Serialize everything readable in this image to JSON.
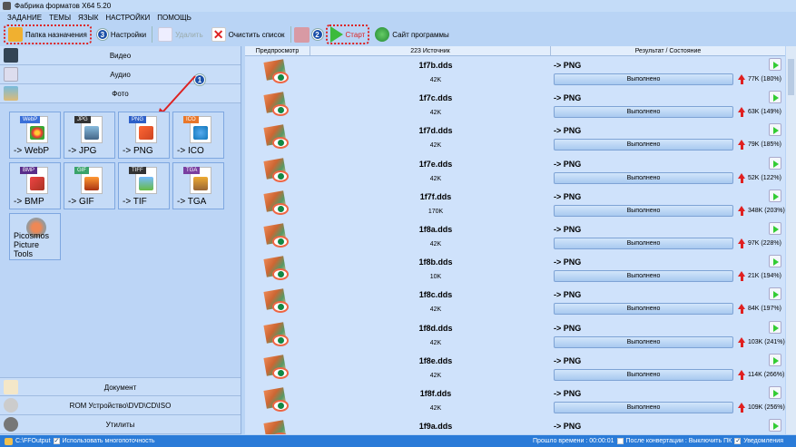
{
  "window": {
    "title": "Фабрика форматов X64 5.20"
  },
  "menu": [
    "ЗАДАНИЕ",
    "ТЕМЫ",
    "ЯЗЫК",
    "НАСТРОЙКИ",
    "ПОМОЩЬ"
  ],
  "toolbar": {
    "dest_folder": "Папка назначения",
    "badge3": "3",
    "settings": "Настройки",
    "delete": "Удалить",
    "clear_list": "Очистить список",
    "badge2": "2",
    "start": "Старт",
    "website": "Сайт программы"
  },
  "categories": {
    "video": "Видео",
    "audio": "Аудио",
    "photo": "Фото",
    "badge1": "1",
    "document": "Документ",
    "rom": "ROM Устройство\\DVD\\CD\\ISO",
    "utilities": "Утилиты"
  },
  "tiles": [
    {
      "tag": "WebP",
      "label": "-> WebP",
      "color": "#3a6fd8"
    },
    {
      "tag": "JPG",
      "label": "-> JPG",
      "color": "#333333"
    },
    {
      "tag": "PNG",
      "label": "-> PNG",
      "color": "#2d5fc8"
    },
    {
      "tag": "ICO",
      "label": "-> ICO",
      "color": "#e9772a"
    },
    {
      "tag": "BMP",
      "label": "-> BMP",
      "color": "#5a2d8a"
    },
    {
      "tag": "GIF",
      "label": "-> GIF",
      "color": "#3aa36a"
    },
    {
      "tag": "TIFF",
      "label": "-> TIF",
      "color": "#333333"
    },
    {
      "tag": "TGA",
      "label": "-> TGA",
      "color": "#7a3fa0"
    }
  ],
  "picosmos": {
    "label1": "Picosmos",
    "label2": "Picture Tools"
  },
  "list": {
    "headers": {
      "preview": "Предпросмотр",
      "source": "223 Источник",
      "result": "Результат / Состояние"
    },
    "rows": [
      {
        "name": "1f7b.dds",
        "size": "42K",
        "format": "-> PNG",
        "status": "Выполнено",
        "result": "77K  (180%)"
      },
      {
        "name": "1f7c.dds",
        "size": "42K",
        "format": "-> PNG",
        "status": "Выполнено",
        "result": "63K  (149%)"
      },
      {
        "name": "1f7d.dds",
        "size": "42K",
        "format": "-> PNG",
        "status": "Выполнено",
        "result": "79K  (185%)"
      },
      {
        "name": "1f7e.dds",
        "size": "42K",
        "format": "-> PNG",
        "status": "Выполнено",
        "result": "52K  (122%)"
      },
      {
        "name": "1f7f.dds",
        "size": "170K",
        "format": "-> PNG",
        "status": "Выполнено",
        "result": "348K  (203%)"
      },
      {
        "name": "1f8a.dds",
        "size": "42K",
        "format": "-> PNG",
        "status": "Выполнено",
        "result": "97K  (228%)"
      },
      {
        "name": "1f8b.dds",
        "size": "10K",
        "format": "-> PNG",
        "status": "Выполнено",
        "result": "21K  (194%)"
      },
      {
        "name": "1f8c.dds",
        "size": "42K",
        "format": "-> PNG",
        "status": "Выполнено",
        "result": "84K  (197%)"
      },
      {
        "name": "1f8d.dds",
        "size": "42K",
        "format": "-> PNG",
        "status": "Выполнено",
        "result": "103K  (241%)"
      },
      {
        "name": "1f8e.dds",
        "size": "42K",
        "format": "-> PNG",
        "status": "Выполнено",
        "result": "114K  (266%)"
      },
      {
        "name": "1f8f.dds",
        "size": "42K",
        "format": "-> PNG",
        "status": "Выполнено",
        "result": "109K  (256%)"
      },
      {
        "name": "1f9a.dds",
        "format": "-> PNG"
      }
    ]
  },
  "status": {
    "output_path": "C:\\FFOutput",
    "multithread": "Использовать многопоточность",
    "elapsed": "Прошло времени : 00:00:01",
    "after_conv": "После конвертации : Выключить ПК",
    "notifications": "Уведомления"
  }
}
